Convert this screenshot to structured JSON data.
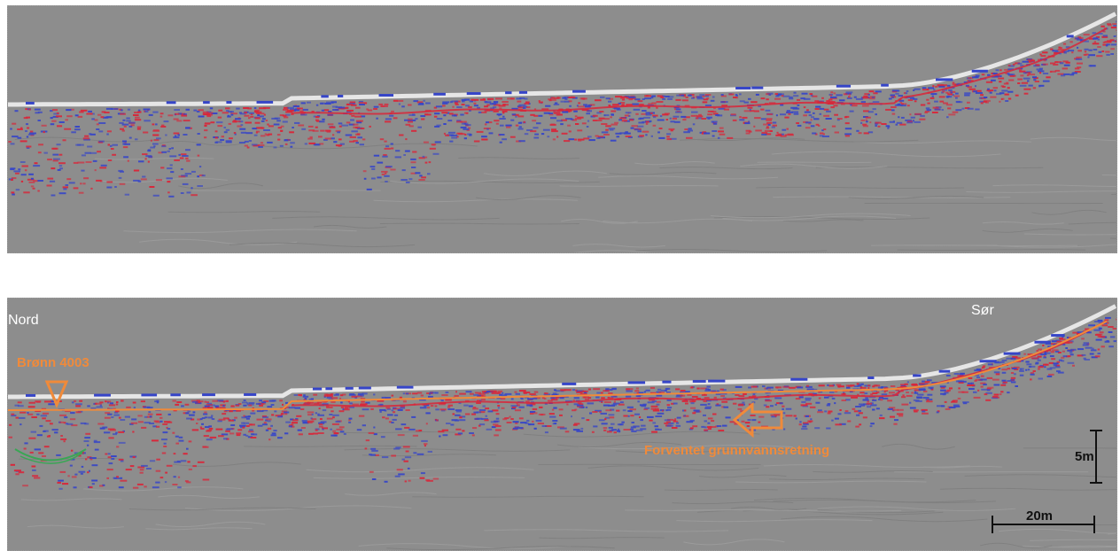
{
  "profile_bottom": {
    "labels": {
      "north": "Nord",
      "south": "Sør",
      "well": "Brønn 4003",
      "flow_direction": "Forventet grunnvannsretning"
    },
    "scale_bars": {
      "vertical": "5m",
      "horizontal": "20m"
    }
  },
  "colors": {
    "background": "#8d8d8d",
    "reflector_red": "#d8273a",
    "reflector_blue": "#3645c8",
    "annotation_orange": "#f08a3a",
    "scale_black": "#111111",
    "green_marker": "#3aa655"
  }
}
